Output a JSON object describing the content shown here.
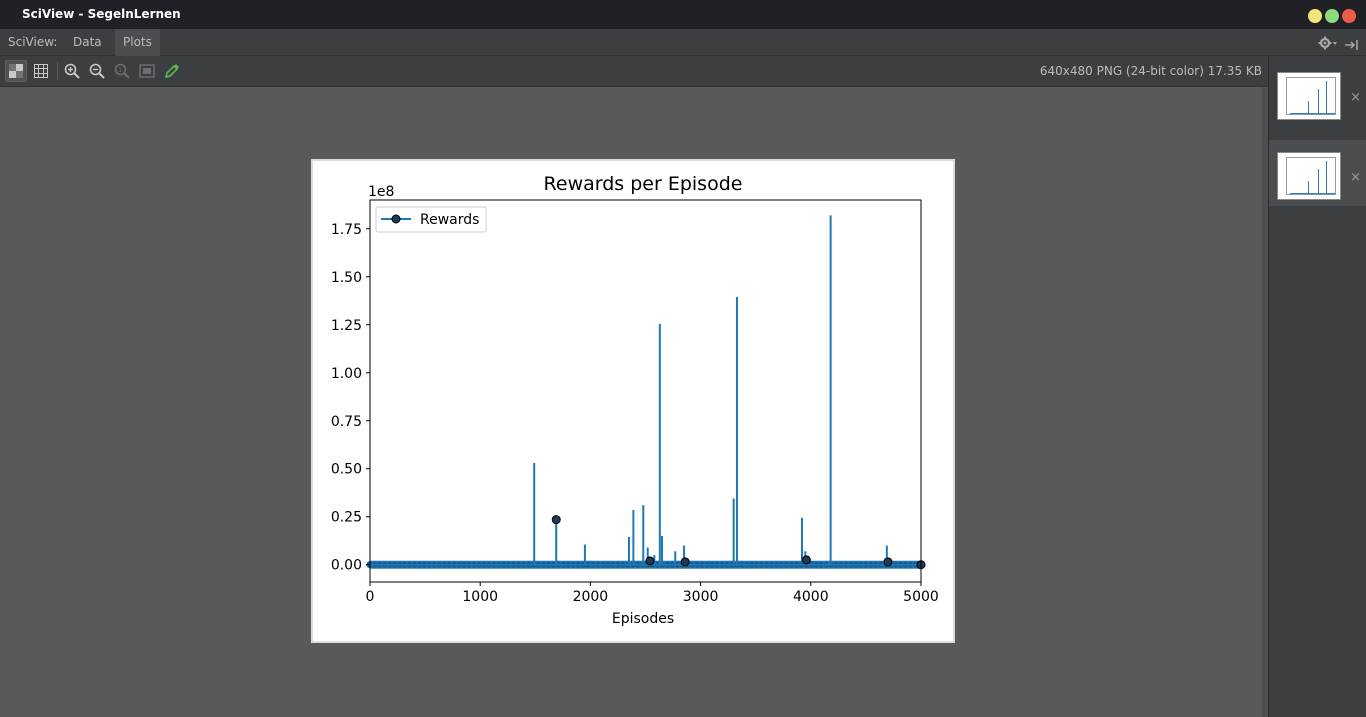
{
  "window": {
    "title": "SciView - SegelnLernen",
    "controls": [
      {
        "name": "minimize",
        "color": "#f4e27a"
      },
      {
        "name": "maximize",
        "color": "#8fd97b"
      },
      {
        "name": "close",
        "color": "#ef5b4a"
      }
    ]
  },
  "menubar": {
    "prefix": "SciView:",
    "items": [
      "Data",
      "Plots"
    ],
    "active": "Plots"
  },
  "toolbar": {
    "image_info": "640x480 PNG (24-bit color) 17.35 KB",
    "buttons": [
      "chessboard-icon",
      "grid-icon",
      "zoom-in-icon",
      "zoom-out-icon",
      "actual-size-icon",
      "fit-icon",
      "color-picker-icon"
    ],
    "right_icons": [
      "gear-icon",
      "pin-icon"
    ]
  },
  "sidebar": {
    "thumbnails": [
      {
        "close_label": "×",
        "selected": false
      },
      {
        "close_label": "×",
        "selected": true
      }
    ]
  },
  "chart_data": {
    "type": "line",
    "title": "Rewards per Episode",
    "xlabel": "Episodes",
    "ylabel": "",
    "scale_label": "1e8",
    "xlim": [
      0,
      5000
    ],
    "ylim": [
      -0.09,
      1.9
    ],
    "xticks": [
      0,
      1000,
      2000,
      3000,
      4000,
      5000
    ],
    "yticks": [
      0.0,
      0.25,
      0.5,
      0.75,
      1.0,
      1.25,
      1.5,
      1.75
    ],
    "ytick_labels": [
      "0.00",
      "0.25",
      "0.50",
      "0.75",
      "1.00",
      "1.25",
      "1.50",
      "1.75"
    ],
    "legend": {
      "position": "top-left",
      "entries": [
        "Rewards"
      ]
    },
    "series": [
      {
        "name": "Rewards",
        "color": "#1f77b4",
        "marker": "circle",
        "baseline": 0.0,
        "spikes": [
          {
            "x": 1490,
            "y": 0.53
          },
          {
            "x": 1690,
            "y": 0.235
          },
          {
            "x": 1950,
            "y": 0.105
          },
          {
            "x": 2350,
            "y": 0.145
          },
          {
            "x": 2390,
            "y": 0.285
          },
          {
            "x": 2480,
            "y": 0.31
          },
          {
            "x": 2520,
            "y": 0.09
          },
          {
            "x": 2580,
            "y": 0.05
          },
          {
            "x": 2630,
            "y": 1.255
          },
          {
            "x": 2650,
            "y": 0.15
          },
          {
            "x": 2770,
            "y": 0.07
          },
          {
            "x": 2850,
            "y": 0.1
          },
          {
            "x": 3300,
            "y": 0.345
          },
          {
            "x": 3330,
            "y": 1.395
          },
          {
            "x": 3920,
            "y": 0.245
          },
          {
            "x": 3950,
            "y": 0.07
          },
          {
            "x": 4180,
            "y": 1.82
          },
          {
            "x": 4690,
            "y": 0.1
          }
        ],
        "highlighted_markers": [
          {
            "x": 1690,
            "y": 0.235
          },
          {
            "x": 2540,
            "y": 0.02
          },
          {
            "x": 2860,
            "y": 0.015
          },
          {
            "x": 3960,
            "y": 0.025
          },
          {
            "x": 4700,
            "y": 0.015
          },
          {
            "x": 5000,
            "y": 0.0
          }
        ]
      }
    ]
  }
}
